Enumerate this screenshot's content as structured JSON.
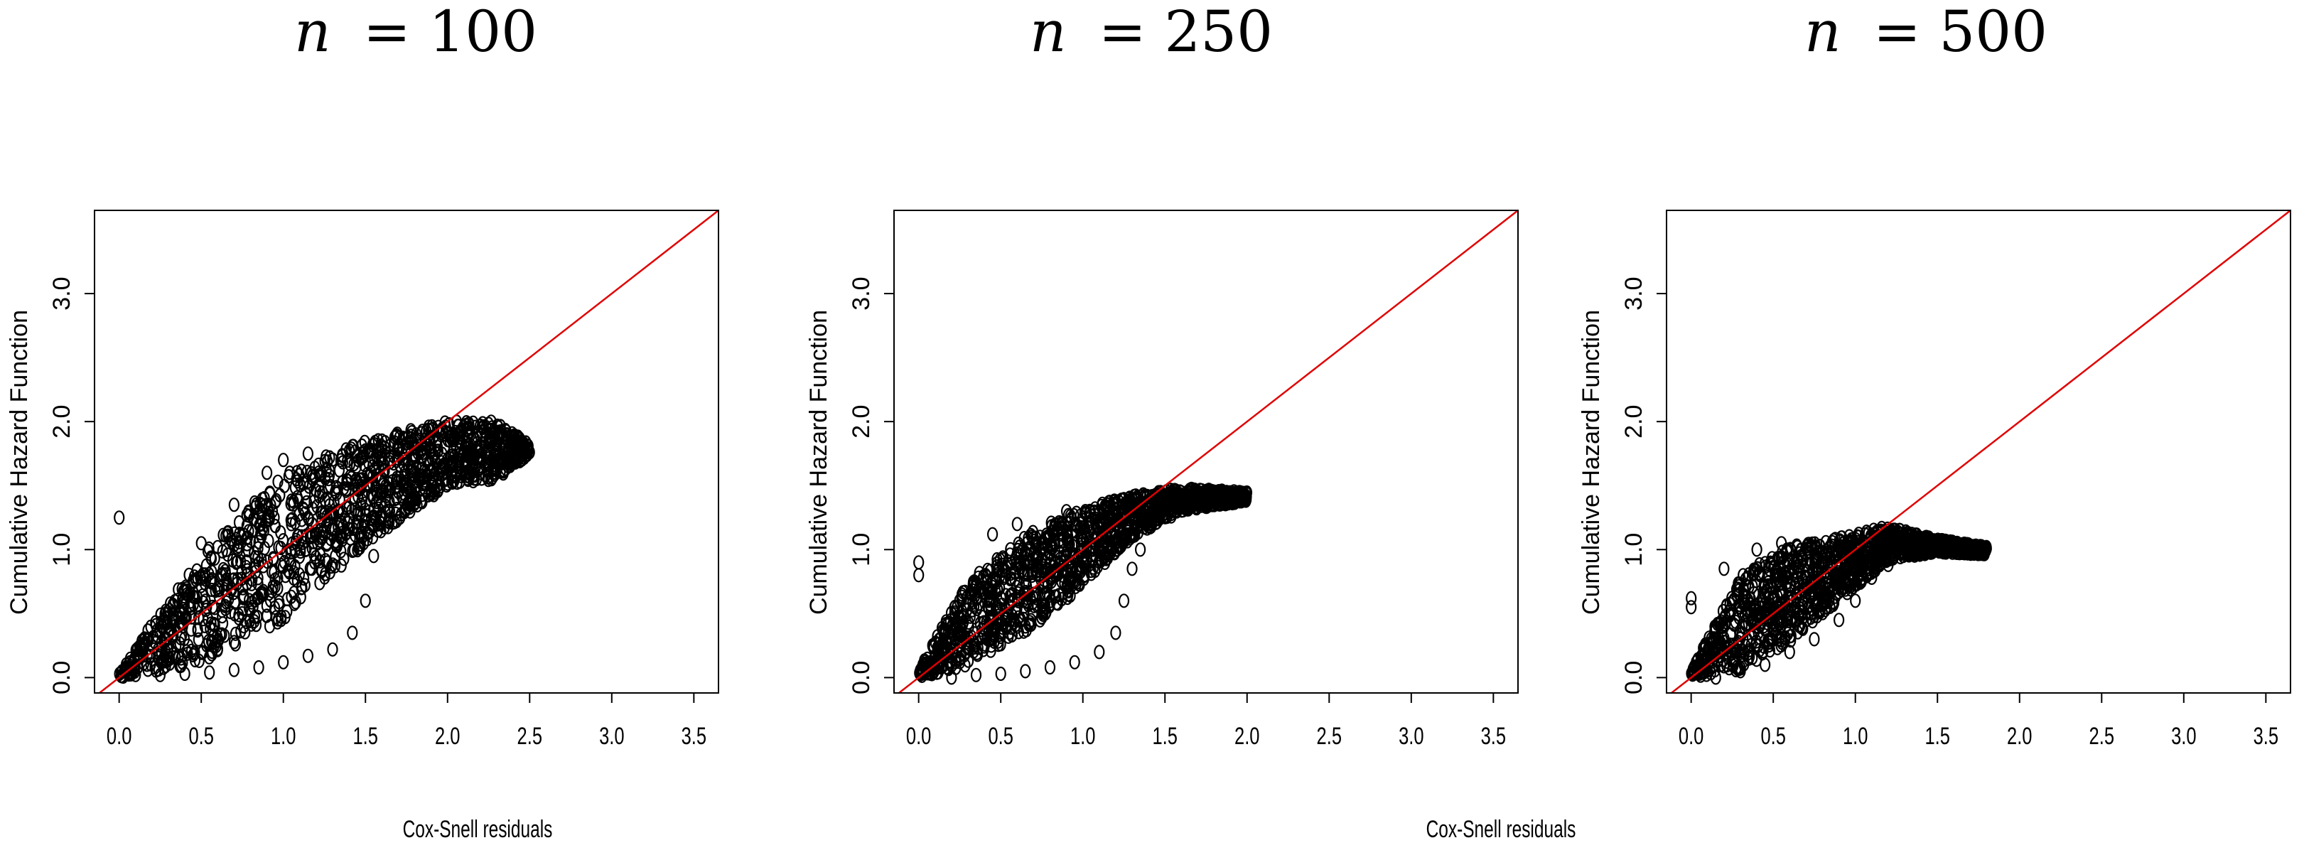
{
  "chart_data": [
    {
      "type": "scatter",
      "title_var": "n",
      "title_eq": "= 100",
      "xlabel": "Cox-Snell residuals",
      "ylabel": "Cumulative Hazard Function",
      "xlim": [
        -0.15,
        3.65
      ],
      "ylim": [
        -0.12,
        3.65
      ],
      "xticks": [
        "0.0",
        "0.5",
        "1.0",
        "1.5",
        "2.0",
        "2.5",
        "3.0",
        "3.5"
      ],
      "yticks": [
        "0.0",
        "1.0",
        "2.0",
        "3.0"
      ],
      "reference_line": {
        "slope": 1,
        "intercept": 0,
        "color": "#e00000"
      },
      "marker": "open-circle",
      "grid": false,
      "cloud": {
        "lower": [
          [
            0.0,
            0.0
          ],
          [
            0.5,
            0.12
          ],
          [
            1.0,
            0.45
          ],
          [
            1.5,
            1.05
          ],
          [
            2.0,
            1.5
          ],
          [
            2.3,
            1.55
          ],
          [
            2.5,
            1.75
          ]
        ],
        "upper": [
          [
            0.0,
            0.06
          ],
          [
            0.5,
            0.95
          ],
          [
            1.0,
            1.6
          ],
          [
            1.5,
            1.85
          ],
          [
            2.0,
            2.0
          ],
          [
            2.3,
            2.0
          ],
          [
            2.5,
            1.82
          ]
        ]
      },
      "outliers": [
        [
          0.0,
          1.25
        ],
        [
          0.1,
          0.02
        ],
        [
          0.25,
          0.02
        ],
        [
          0.4,
          0.03
        ],
        [
          0.55,
          0.04
        ],
        [
          0.7,
          0.06
        ],
        [
          0.85,
          0.08
        ],
        [
          1.0,
          0.12
        ],
        [
          1.15,
          0.17
        ],
        [
          1.3,
          0.22
        ],
        [
          1.42,
          0.35
        ],
        [
          1.5,
          0.6
        ],
        [
          1.55,
          0.95
        ],
        [
          1.6,
          1.25
        ],
        [
          1.7,
          1.45
        ],
        [
          0.5,
          1.05
        ],
        [
          0.7,
          1.35
        ],
        [
          0.9,
          1.6
        ],
        [
          1.0,
          1.7
        ],
        [
          1.15,
          1.75
        ]
      ]
    },
    {
      "type": "scatter",
      "title_var": "n",
      "title_eq": "= 250",
      "xlabel": "Cox-Snell residuals",
      "ylabel": "Cumulative Hazard Function",
      "xlim": [
        -0.15,
        3.65
      ],
      "ylim": [
        -0.12,
        3.65
      ],
      "xticks": [
        "0.0",
        "0.5",
        "1.0",
        "1.5",
        "2.0",
        "2.5",
        "3.0",
        "3.5"
      ],
      "yticks": [
        "0.0",
        "1.0",
        "2.0",
        "3.0"
      ],
      "reference_line": {
        "slope": 1,
        "intercept": 0,
        "color": "#e00000"
      },
      "marker": "open-circle",
      "grid": false,
      "cloud": {
        "lower": [
          [
            0.0,
            0.0
          ],
          [
            0.3,
            0.1
          ],
          [
            0.7,
            0.4
          ],
          [
            1.0,
            0.72
          ],
          [
            1.3,
            1.1
          ],
          [
            1.6,
            1.3
          ],
          [
            2.0,
            1.38
          ]
        ],
        "upper": [
          [
            0.0,
            0.06
          ],
          [
            0.3,
            0.75
          ],
          [
            0.7,
            1.15
          ],
          [
            1.0,
            1.32
          ],
          [
            1.3,
            1.42
          ],
          [
            1.6,
            1.48
          ],
          [
            2.0,
            1.45
          ]
        ]
      },
      "outliers": [
        [
          0.0,
          0.9
        ],
        [
          0.0,
          0.8
        ],
        [
          0.2,
          0.0
        ],
        [
          0.35,
          0.02
        ],
        [
          0.5,
          0.03
        ],
        [
          0.65,
          0.05
        ],
        [
          0.8,
          0.08
        ],
        [
          0.95,
          0.12
        ],
        [
          1.1,
          0.2
        ],
        [
          1.2,
          0.35
        ],
        [
          1.25,
          0.6
        ],
        [
          1.3,
          0.85
        ],
        [
          1.35,
          1.0
        ],
        [
          0.45,
          1.12
        ],
        [
          0.6,
          1.2
        ],
        [
          0.9,
          1.3
        ]
      ]
    },
    {
      "type": "scatter",
      "title_var": "n",
      "title_eq": "= 500",
      "xlabel": "Cox-Snell residuals",
      "ylabel": "Cumulative Hazard Function",
      "xlim": [
        -0.15,
        3.65
      ],
      "ylim": [
        -0.12,
        3.65
      ],
      "xticks": [
        "0.0",
        "0.5",
        "1.0",
        "1.5",
        "2.0",
        "2.5",
        "3.0",
        "3.5"
      ],
      "yticks": [
        "0.0",
        "1.0",
        "2.0",
        "3.0"
      ],
      "reference_line": {
        "slope": 1,
        "intercept": 0,
        "color": "#e00000"
      },
      "marker": "open-circle",
      "grid": false,
      "cloud": {
        "lower": [
          [
            0.0,
            0.0
          ],
          [
            0.3,
            0.06
          ],
          [
            0.6,
            0.28
          ],
          [
            0.9,
            0.6
          ],
          [
            1.2,
            0.92
          ],
          [
            1.5,
            0.98
          ],
          [
            1.8,
            0.96
          ]
        ],
        "upper": [
          [
            0.0,
            0.05
          ],
          [
            0.3,
            0.8
          ],
          [
            0.6,
            1.02
          ],
          [
            0.9,
            1.1
          ],
          [
            1.2,
            1.18
          ],
          [
            1.5,
            1.08
          ],
          [
            1.8,
            1.02
          ]
        ]
      },
      "outliers": [
        [
          0.0,
          0.62
        ],
        [
          0.0,
          0.55
        ],
        [
          0.15,
          0.0
        ],
        [
          0.3,
          0.05
        ],
        [
          0.45,
          0.1
        ],
        [
          0.6,
          0.2
        ],
        [
          0.75,
          0.3
        ],
        [
          0.9,
          0.45
        ],
        [
          1.0,
          0.6
        ],
        [
          1.1,
          0.78
        ],
        [
          1.2,
          0.88
        ],
        [
          0.2,
          0.85
        ],
        [
          0.4,
          1.0
        ],
        [
          0.55,
          1.05
        ]
      ]
    }
  ]
}
